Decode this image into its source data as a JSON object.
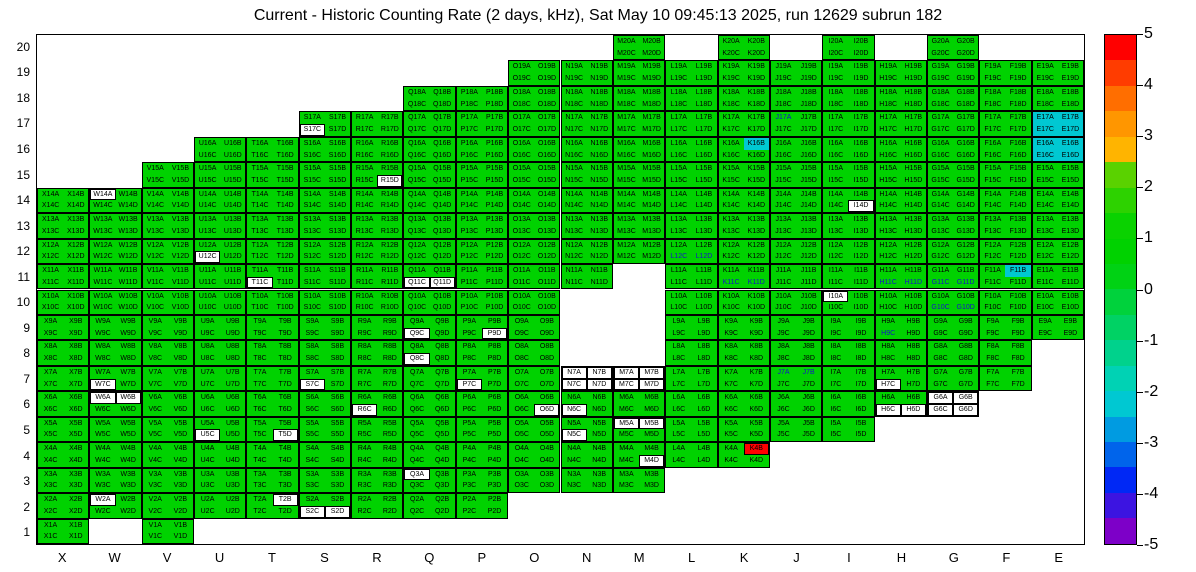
{
  "title": "Current - Historic Counting Rate (2 days, kHz), Sat May 10 09:45:13 2025, run 12629 subrun 182",
  "chart_data": {
    "type": "heatmap",
    "title": "Current - Historic Counting Rate (2 days, kHz), Sat May 10 09:45:13 2025, run 12629 subrun 182",
    "run": "12629",
    "subrun": "182",
    "timestamp": "Sat May 10 09:45:13 2025",
    "value_unit": "kHz",
    "value_range": [
      -5,
      5
    ],
    "default_value": 0,
    "x_axis_labels": [
      "X",
      "W",
      "V",
      "U",
      "T",
      "S",
      "R",
      "Q",
      "P",
      "O",
      "N",
      "M",
      "L",
      "K",
      "J",
      "I",
      "H",
      "G",
      "F",
      "E"
    ],
    "y_axis_labels": [
      "20",
      "19",
      "18",
      "17",
      "16",
      "15",
      "14",
      "13",
      "12",
      "11",
      "10",
      "9",
      "8",
      "7",
      "6",
      "5",
      "4",
      "3",
      "2",
      "1"
    ],
    "subcells_per_cell": [
      "A",
      "B",
      "C",
      "D"
    ],
    "present_columns_by_row": {
      "20": [
        "M",
        "K",
        "I",
        "G"
      ],
      "19": [
        "O",
        "N",
        "M",
        "L",
        "K",
        "J",
        "I",
        "H",
        "G",
        "F",
        "E"
      ],
      "18": [
        "Q",
        "P",
        "O",
        "N",
        "M",
        "L",
        "K",
        "J",
        "I",
        "H",
        "G",
        "F",
        "E"
      ],
      "17": [
        "S",
        "R",
        "Q",
        "P",
        "O",
        "N",
        "M",
        "L",
        "K",
        "J",
        "I",
        "H",
        "G",
        "F",
        "E"
      ],
      "16": [
        "U",
        "T",
        "S",
        "R",
        "Q",
        "P",
        "O",
        "N",
        "M",
        "L",
        "K",
        "J",
        "I",
        "H",
        "G",
        "F",
        "E"
      ],
      "15": [
        "V",
        "U",
        "T",
        "S",
        "R",
        "Q",
        "P",
        "O",
        "N",
        "M",
        "L",
        "K",
        "J",
        "I",
        "H",
        "G",
        "F",
        "E"
      ],
      "14": [
        "X",
        "W",
        "V",
        "U",
        "T",
        "S",
        "R",
        "Q",
        "P",
        "O",
        "N",
        "M",
        "L",
        "K",
        "J",
        "I",
        "H",
        "G",
        "F",
        "E"
      ],
      "13": [
        "X",
        "W",
        "V",
        "U",
        "T",
        "S",
        "R",
        "Q",
        "P",
        "O",
        "N",
        "M",
        "L",
        "K",
        "J",
        "I",
        "H",
        "G",
        "F",
        "E"
      ],
      "12": [
        "X",
        "W",
        "V",
        "U",
        "T",
        "S",
        "R",
        "Q",
        "P",
        "O",
        "N",
        "M",
        "L",
        "K",
        "J",
        "I",
        "H",
        "G",
        "F",
        "E"
      ],
      "11": [
        "X",
        "W",
        "V",
        "U",
        "T",
        "S",
        "R",
        "Q",
        "P",
        "O",
        "N",
        "L",
        "K",
        "J",
        "I",
        "H",
        "G",
        "F",
        "E"
      ],
      "10": [
        "X",
        "W",
        "V",
        "U",
        "T",
        "S",
        "R",
        "Q",
        "P",
        "O",
        "L",
        "K",
        "J",
        "I",
        "H",
        "G",
        "F",
        "E"
      ],
      "9": [
        "X",
        "W",
        "V",
        "U",
        "T",
        "S",
        "R",
        "Q",
        "P",
        "O",
        "L",
        "K",
        "J",
        "I",
        "H",
        "G",
        "F",
        "E"
      ],
      "8": [
        "X",
        "W",
        "V",
        "U",
        "T",
        "S",
        "R",
        "Q",
        "P",
        "O",
        "L",
        "K",
        "J",
        "I",
        "H",
        "G",
        "F"
      ],
      "7": [
        "X",
        "W",
        "V",
        "U",
        "T",
        "S",
        "R",
        "Q",
        "P",
        "O",
        "N",
        "M",
        "L",
        "K",
        "J",
        "I",
        "H",
        "G",
        "F"
      ],
      "6": [
        "X",
        "W",
        "V",
        "U",
        "T",
        "S",
        "R",
        "Q",
        "P",
        "O",
        "N",
        "M",
        "L",
        "K",
        "J",
        "I",
        "H",
        "G"
      ],
      "5": [
        "X",
        "W",
        "V",
        "U",
        "T",
        "S",
        "R",
        "Q",
        "P",
        "O",
        "N",
        "M",
        "L",
        "K",
        "J",
        "I"
      ],
      "4": [
        "X",
        "W",
        "V",
        "U",
        "T",
        "S",
        "R",
        "Q",
        "P",
        "O",
        "N",
        "M",
        "L",
        "K"
      ],
      "3": [
        "X",
        "W",
        "V",
        "U",
        "T",
        "S",
        "R",
        "Q",
        "P",
        "O",
        "N",
        "M"
      ],
      "2": [
        "X",
        "W",
        "V",
        "U",
        "T",
        "S",
        "R",
        "Q",
        "P"
      ],
      "1": [
        "X",
        "V"
      ]
    },
    "off_subcells": [
      "S17C",
      "R15D",
      "W14A",
      "I14D",
      "U12C",
      "T11C",
      "Q11C",
      "Q11D",
      "I10A",
      "Q9C",
      "P9D",
      "Q8C",
      "N7A",
      "N7B",
      "N7C",
      "N7D",
      "M7A",
      "M7B",
      "M7C",
      "M7D",
      "W7C",
      "S7C",
      "P7C",
      "H7C",
      "W6A",
      "W6B",
      "R6C",
      "O6D",
      "N6C",
      "H6C",
      "H6D",
      "G6A",
      "G6B",
      "G6C",
      "G6D",
      "N5C",
      "M5A",
      "M5B",
      "U5C",
      "T5D",
      "M4D",
      "Q3A",
      "W2A",
      "T2B",
      "S2C",
      "S2D"
    ],
    "value_minus_half_subcells": [
      "J17A",
      "L12C",
      "L12D",
      "K11C",
      "K11D",
      "H11C",
      "H11D",
      "G11C",
      "G11D",
      "G10C",
      "G10D",
      "H9C",
      "J7A",
      "J7B"
    ],
    "value_minus_two_subcells": [
      "K16B",
      "F11B",
      "E17A",
      "E17B",
      "E17C",
      "E17D",
      "E16A",
      "E16B",
      "E16C",
      "E16D"
    ],
    "value_five_subcells": [
      "K4B"
    ]
  },
  "colors": {
    "cell_default": "#00d200",
    "cell_off": "#ffffff",
    "cell_low": "#00c8d2",
    "cell_high": "#ff0000",
    "text_negative": "#1414c8"
  },
  "colorbar": {
    "min": -5,
    "max": 5,
    "ticks": [
      "5",
      "4",
      "3",
      "2",
      "1",
      "0",
      "-1",
      "-2",
      "-3",
      "-4",
      "-5"
    ],
    "bands": [
      "#ff0000",
      "#ff3c00",
      "#ff6e00",
      "#ff9600",
      "#ffb400",
      "#5ad200",
      "#2dd200",
      "#0ad200",
      "#00d200",
      "#00d214",
      "#00d23c",
      "#00d264",
      "#00d28c",
      "#00d2b4",
      "#00c8d2",
      "#009be1",
      "#0064eb",
      "#0028f5",
      "#3c14e1",
      "#7d00c8"
    ]
  }
}
